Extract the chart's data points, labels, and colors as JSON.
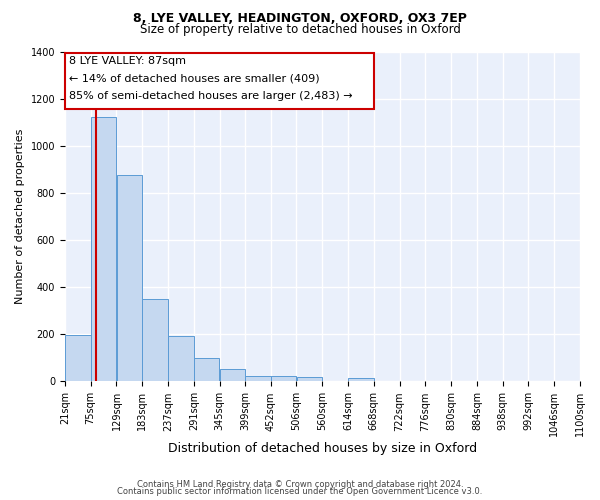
{
  "title": "8, LYE VALLEY, HEADINGTON, OXFORD, OX3 7EP",
  "subtitle": "Size of property relative to detached houses in Oxford",
  "xlabel": "Distribution of detached houses by size in Oxford",
  "ylabel": "Number of detached properties",
  "footer_line1": "Contains HM Land Registry data © Crown copyright and database right 2024.",
  "footer_line2": "Contains public sector information licensed under the Open Government Licence v3.0.",
  "annotation_line1": "8 LYE VALLEY: 87sqm",
  "annotation_line2": "← 14% of detached houses are smaller (409)",
  "annotation_line3": "85% of semi-detached houses are larger (2,483) →",
  "bar_edges": [
    21,
    75,
    129,
    183,
    237,
    291,
    345,
    399,
    452,
    506,
    560,
    614,
    668,
    722,
    776,
    830,
    884,
    938,
    992,
    1046,
    1100
  ],
  "bar_heights": [
    197,
    1120,
    878,
    350,
    192,
    98,
    52,
    25,
    22,
    18,
    0,
    15,
    0,
    0,
    0,
    0,
    0,
    0,
    0,
    0
  ],
  "bar_color": "#c5d8f0",
  "bar_edge_color": "#5b9bd5",
  "marker_x": 87,
  "marker_color": "#cc0000",
  "ylim": [
    0,
    1400
  ],
  "xlim": [
    21,
    1100
  ],
  "yticks": [
    0,
    200,
    400,
    600,
    800,
    1000,
    1200,
    1400
  ],
  "background_color": "#eaf0fb",
  "grid_color": "#ffffff",
  "title_fontsize": 9,
  "subtitle_fontsize": 8.5,
  "ylabel_fontsize": 8,
  "xlabel_fontsize": 9,
  "tick_label_fontsize": 7,
  "footer_fontsize": 6,
  "annotation_fontsize": 8
}
